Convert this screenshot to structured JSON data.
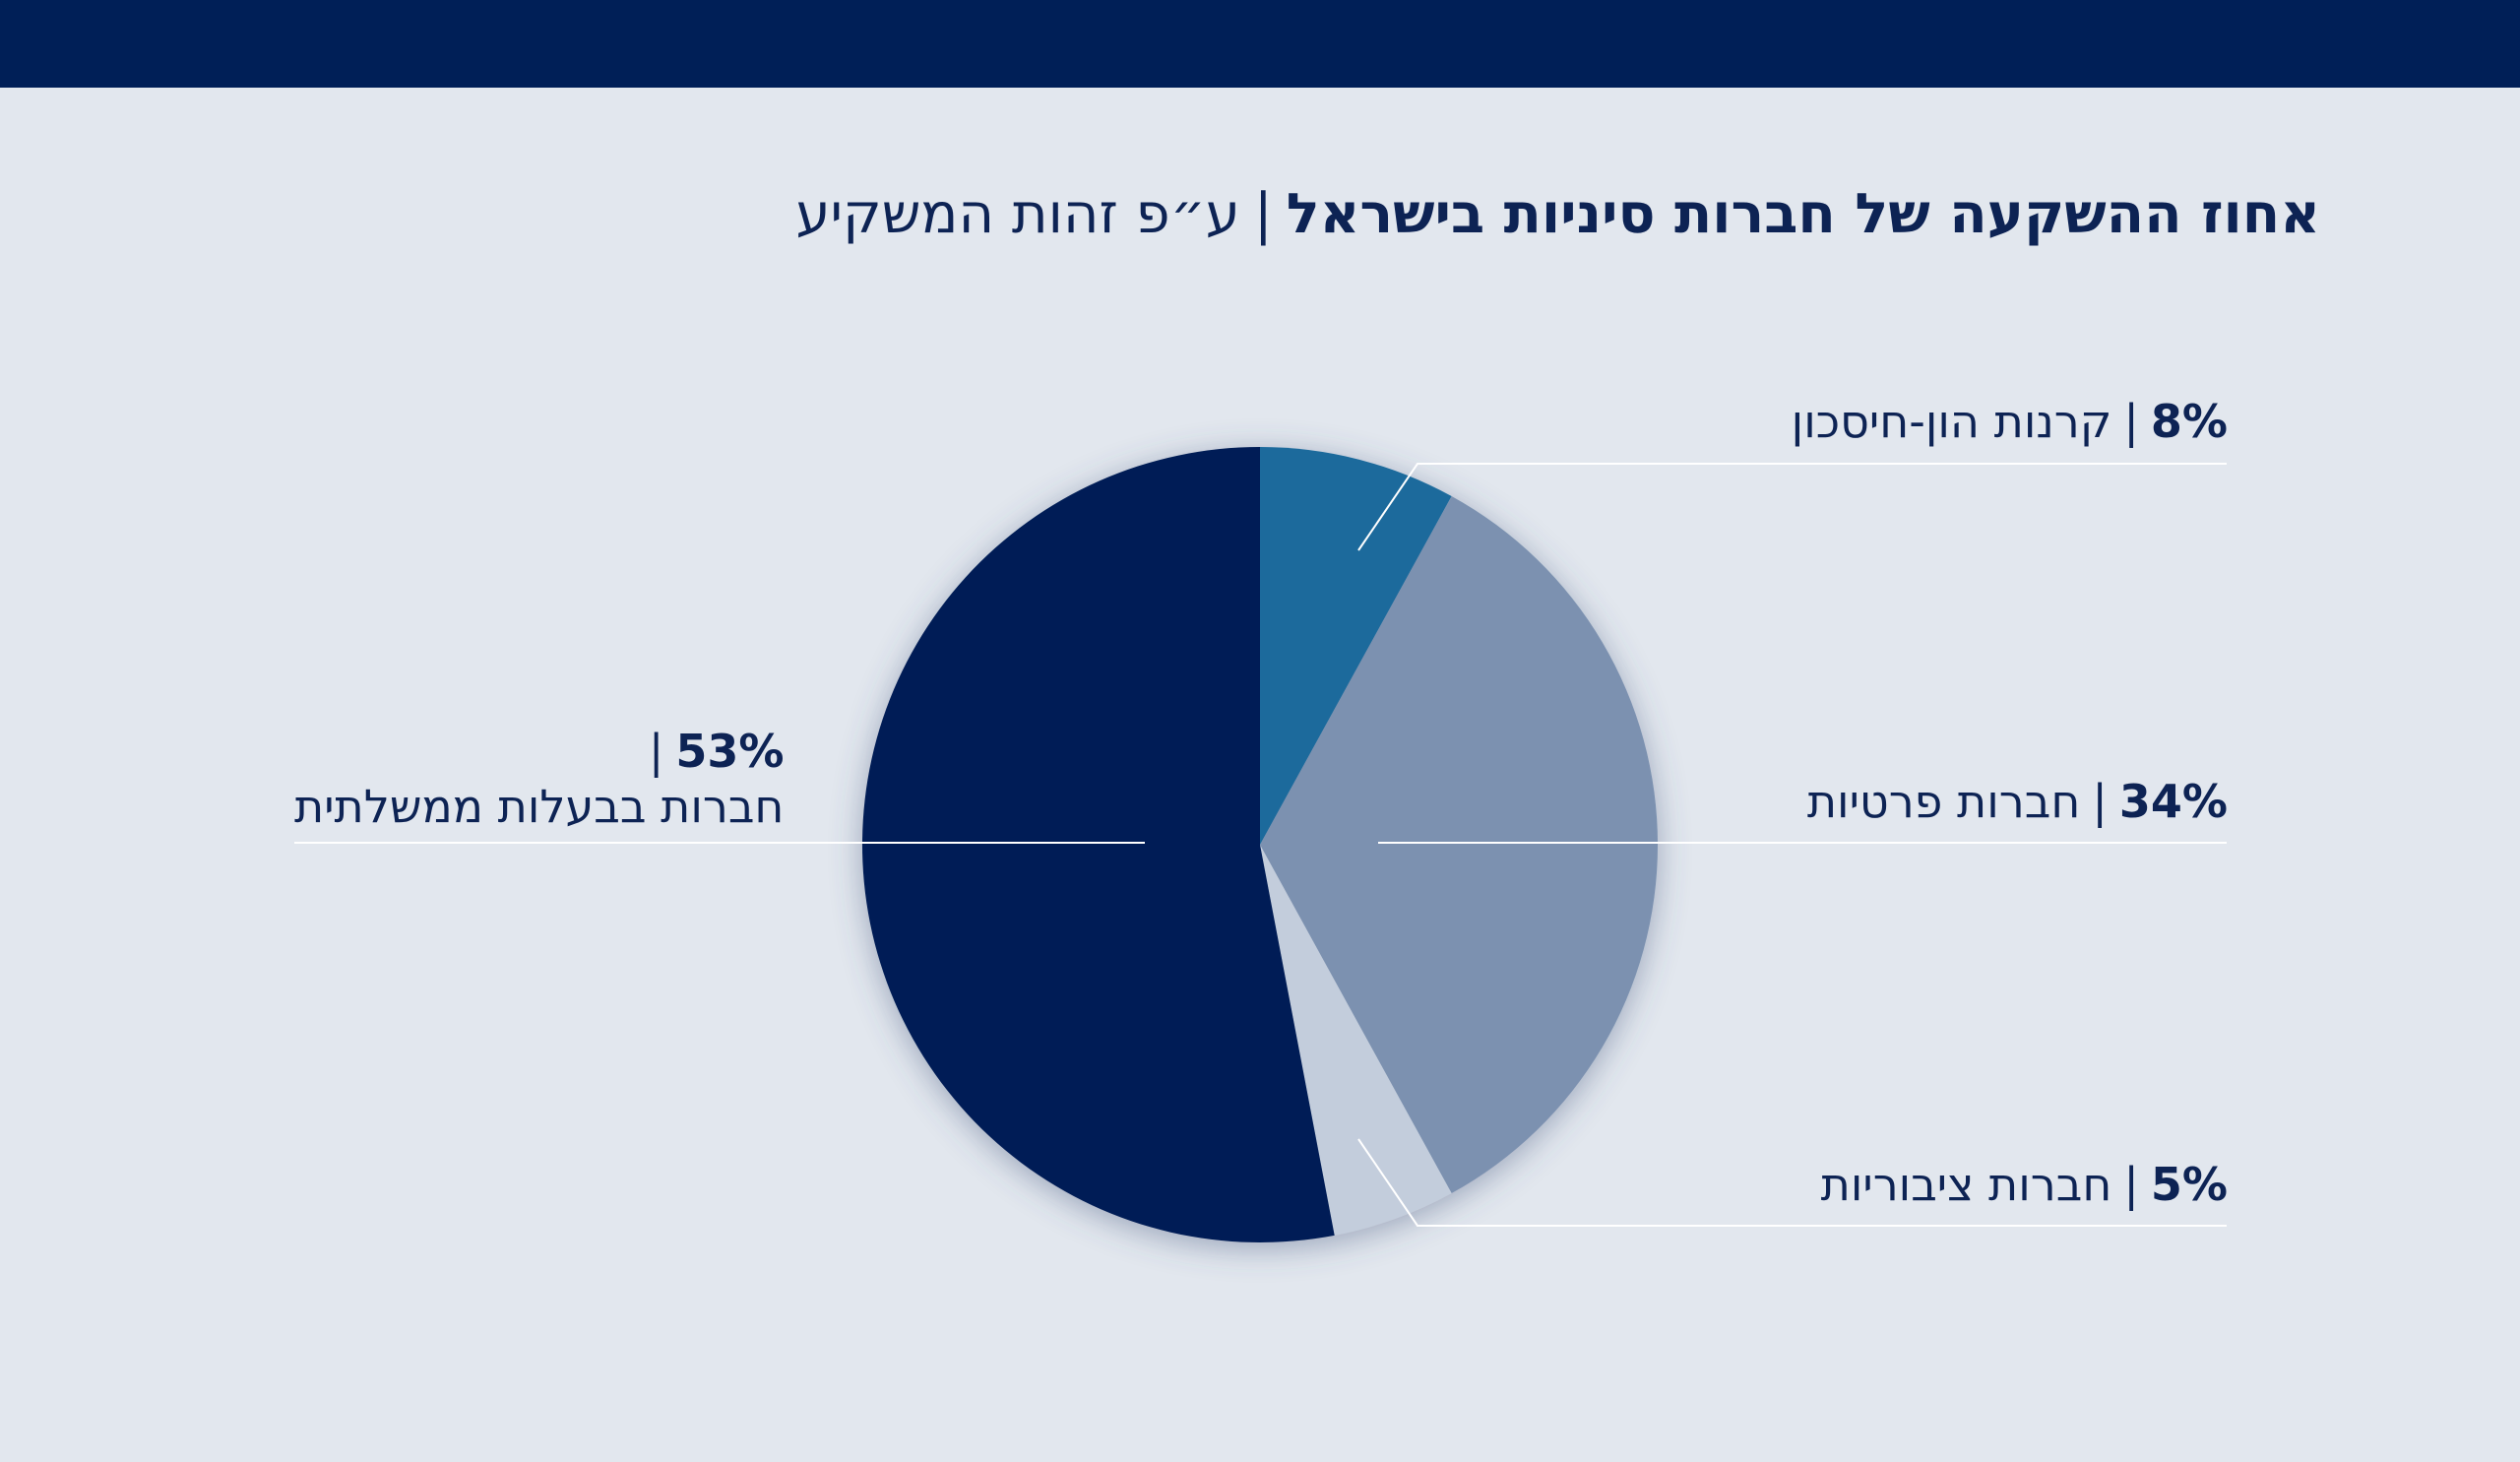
{
  "colors": {
    "background": "#e2e7ee",
    "top_bar": "#001f57",
    "text": "#0d2354",
    "leader_line": "#ffffff"
  },
  "title": {
    "main": "אחוז ההשקעה של חברות סיניות בישראל",
    "separator": "|",
    "sub": "ע״פ זהות המשקיע"
  },
  "chart_data": {
    "type": "pie",
    "title": "אחוז ההשקעה של חברות סיניות בישראל | ע״פ זהות המשקיע",
    "start_angle_deg": 0,
    "direction": "clockwise",
    "slices": [
      {
        "label": "קרנות הון-חיסכון",
        "value": 8,
        "value_label": "8%",
        "color": "#1a6a9c"
      },
      {
        "label": "חברות פרטיות",
        "value": 34,
        "value_label": "34%",
        "color": "#7b91b0"
      },
      {
        "label": "חברות ציבוריות",
        "value": 5,
        "value_label": "5%",
        "color": "#c3cddc"
      },
      {
        "label": "חברות בבעלות ממשלתית",
        "value": 53,
        "value_label": "53%",
        "color": "#001f57"
      }
    ]
  }
}
